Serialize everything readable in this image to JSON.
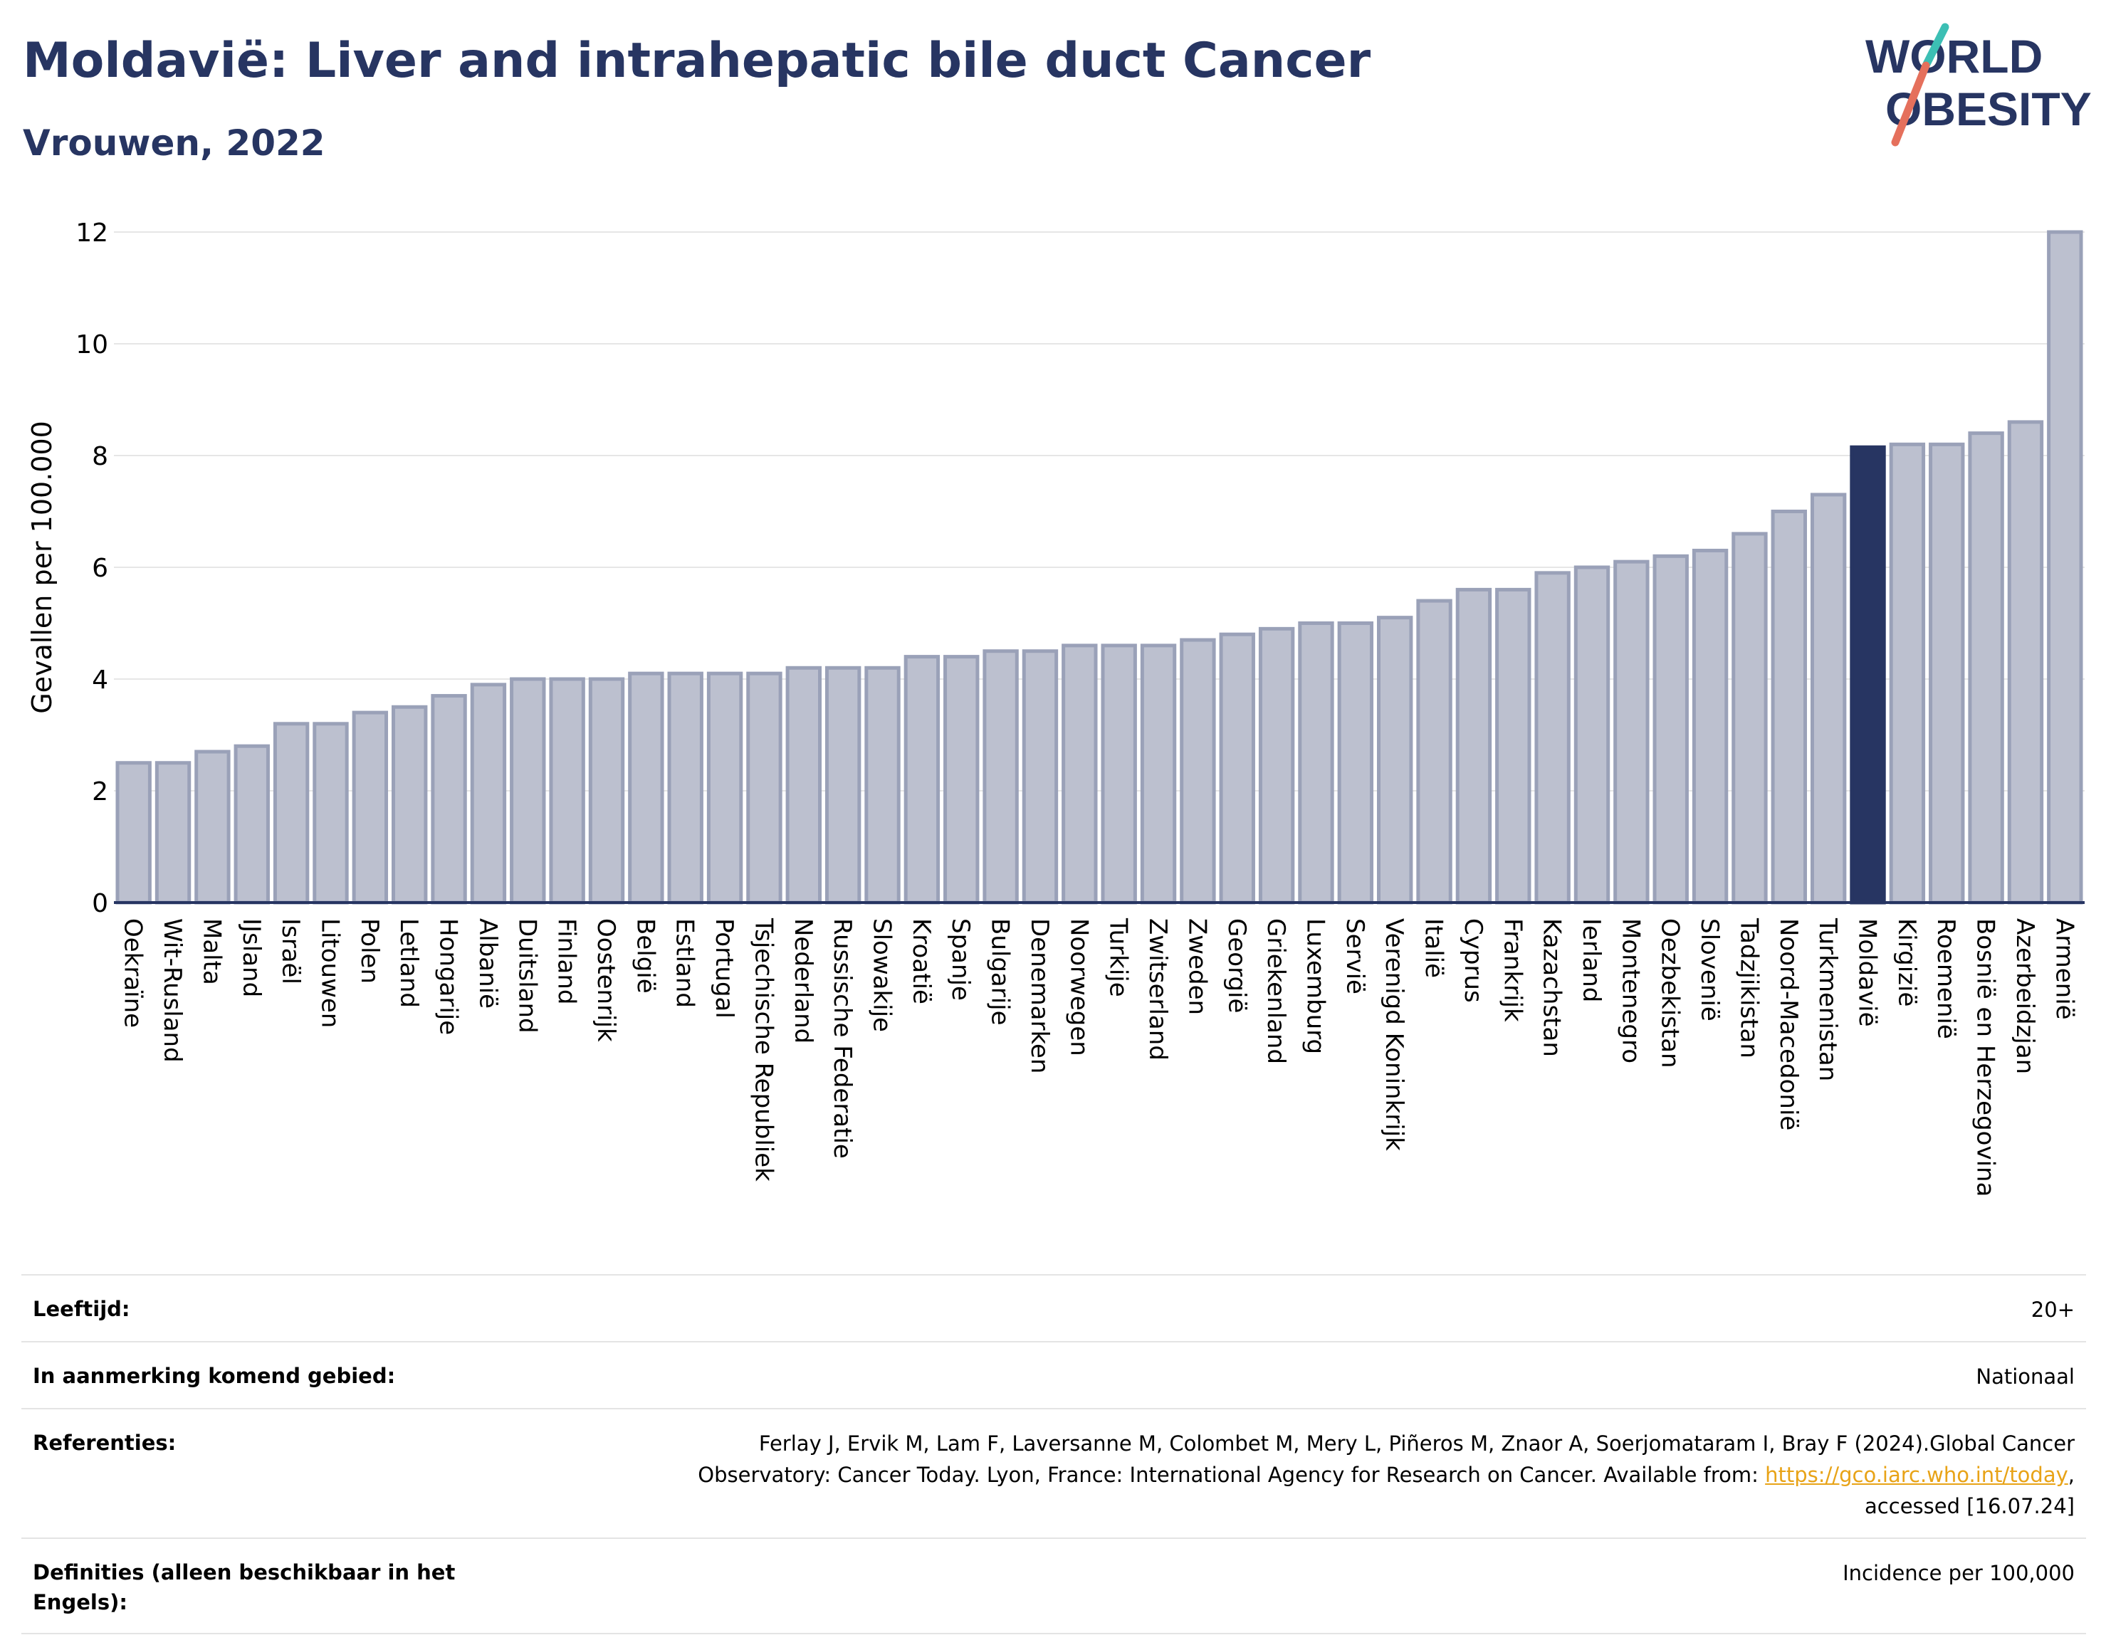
{
  "header": {
    "title": "Moldavië: Liver and intrahepatic bile duct Cancer",
    "subtitle": "Vrouwen, 2022"
  },
  "logo": {
    "line1": "WORLD",
    "line2": "OBESITY",
    "colors": {
      "text": "#273562",
      "slash_teal": "#3cbfb4",
      "slash_red": "#e5705c"
    }
  },
  "colors": {
    "bar": "#bcc0cf",
    "bar_stroke": "#9aa1b8",
    "highlight": "#273562",
    "grid": "#e6e6e6",
    "axis": "#273562"
  },
  "chart_data": {
    "type": "bar",
    "ylabel": "Gevallen per 100.000",
    "xlabel": "",
    "ylim": [
      0,
      12
    ],
    "yticks": [
      0,
      2,
      4,
      6,
      8,
      10,
      12
    ],
    "grid": true,
    "highlight": "Moldavië",
    "categories": [
      "Oekraïne",
      "Wit-Rusland",
      "Malta",
      "IJsland",
      "Israël",
      "Litouwen",
      "Polen",
      "Letland",
      "Hongarije",
      "Albanië",
      "Duitsland",
      "Finland",
      "Oostenrijk",
      "België",
      "Estland",
      "Portugal",
      "Tsjechische Republiek",
      "Nederland",
      "Russische Federatie",
      "Slowakije",
      "Kroatië",
      "Spanje",
      "Bulgarije",
      "Denemarken",
      "Noorwegen",
      "Turkije",
      "Zwitserland",
      "Zweden",
      "Georgië",
      "Griekenland",
      "Luxemburg",
      "Servië",
      "Verenigd Koninkrijk",
      "Italië",
      "Cyprus",
      "Frankrijk",
      "Kazachstan",
      "Ierland",
      "Montenegro",
      "Oezbekistan",
      "Slovenië",
      "Tadzjikistan",
      "Noord-Macedonië",
      "Turkmenistan",
      "Moldavië",
      "Kirgizië",
      "Roemenië",
      "Bosnië en Herzegovina",
      "Azerbeidzjan",
      "Armenië"
    ],
    "values": [
      2.5,
      2.5,
      2.7,
      2.8,
      3.2,
      3.2,
      3.4,
      3.5,
      3.7,
      3.9,
      4.0,
      4.0,
      4.0,
      4.1,
      4.1,
      4.1,
      4.1,
      4.2,
      4.2,
      4.2,
      4.4,
      4.4,
      4.5,
      4.5,
      4.6,
      4.6,
      4.6,
      4.7,
      4.8,
      4.9,
      5.0,
      5.0,
      5.1,
      5.4,
      5.6,
      5.6,
      5.9,
      6.0,
      6.1,
      6.2,
      6.3,
      6.6,
      7.0,
      7.3,
      8.15,
      8.2,
      8.2,
      8.4,
      8.6,
      12.0
    ]
  },
  "meta": {
    "age_label": "Leeftijd:",
    "age_value": "20+",
    "area_label": "In aanmerking komend gebied:",
    "area_value": "Nationaal",
    "ref_label": "Referenties:",
    "ref_value_1": "Ferlay J, Ervik M, Lam F, Laversanne M, Colombet M, Mery L, Piñeros M, Znaor A, Soerjomataram I, Bray F (2024).Global Cancer",
    "ref_value_2": "Observatory: Cancer Today. Lyon, France: International Agency for Research on Cancer. Available from: ",
    "ref_link": "https://gco.iarc.who.int/today",
    "ref_value_3": ",",
    "ref_value_4": "accessed [16.07.24]",
    "def_label": "Definities (alleen beschikbaar in het Engels):",
    "def_value": "Incidence per 100,000"
  }
}
